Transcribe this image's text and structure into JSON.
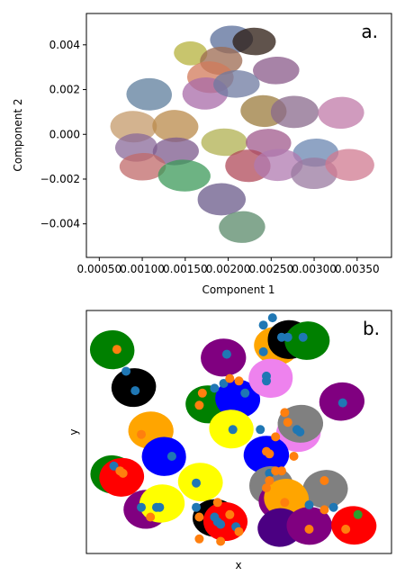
{
  "figure": {
    "background": "#ffffff"
  },
  "chart_data": [
    {
      "type": "scatter",
      "panel_label": "a.",
      "xlabel": "Component 1",
      "ylabel": "Component 2",
      "xlim": [
        0.00035,
        0.0039
      ],
      "ylim": [
        -0.0055,
        0.0054
      ],
      "xticks": [
        0.0005,
        0.001,
        0.0015,
        0.002,
        0.0025,
        0.003,
        0.0035
      ],
      "xtick_labels": [
        "0.00050",
        "0.00100",
        "0.00150",
        "0.00200",
        "0.00250",
        "0.00300",
        "0.00350"
      ],
      "yticks": [
        -0.004,
        -0.002,
        0.0,
        0.002,
        0.004
      ],
      "ytick_labels": [
        "−0.004",
        "−0.002",
        "0.000",
        "0.002",
        "0.004"
      ],
      "grid": false,
      "legend": "none",
      "clusters": [
        {
          "x": 0.00205,
          "y": 0.0042,
          "rx": 0.00028,
          "ry": 0.0007,
          "color": "#5a6e9a"
        },
        {
          "x": 0.0023,
          "y": 0.0041,
          "rx": 0.00028,
          "ry": 0.0007,
          "color": "#2b1a10"
        },
        {
          "x": 0.00155,
          "y": 0.0036,
          "rx": 0.00022,
          "ry": 0.0006,
          "color": "#b5b13c"
        },
        {
          "x": 0.0019,
          "y": 0.0033,
          "rx": 0.00028,
          "ry": 0.0007,
          "color": "#9c6a50"
        },
        {
          "x": 0.00255,
          "y": 0.0029,
          "rx": 0.0003,
          "ry": 0.0007,
          "color": "#8a5a8a"
        },
        {
          "x": 0.0018,
          "y": 0.0026,
          "rx": 0.0003,
          "ry": 0.0008,
          "color": "#d27a5a"
        },
        {
          "x": 0.0011,
          "y": 0.0018,
          "rx": 0.0003,
          "ry": 0.0008,
          "color": "#5d7e9c"
        },
        {
          "x": 0.00175,
          "y": 0.0018,
          "rx": 0.0003,
          "ry": 0.0008,
          "color": "#a86ba8"
        },
        {
          "x": 0.0021,
          "y": 0.0022,
          "rx": 0.0003,
          "ry": 0.0007,
          "color": "#6d7aa0"
        },
        {
          "x": 0.0024,
          "y": 0.001,
          "rx": 0.0003,
          "ry": 0.0008,
          "color": "#9b7b3c"
        },
        {
          "x": 0.00275,
          "y": 0.001,
          "rx": 0.00032,
          "ry": 0.0008,
          "color": "#8a6a8c"
        },
        {
          "x": 0.0033,
          "y": 0.001,
          "rx": 0.0003,
          "ry": 0.0008,
          "color": "#c07aa8"
        },
        {
          "x": 0.0009,
          "y": 0.0004,
          "rx": 0.0003,
          "ry": 0.0008,
          "color": "#c49a6a"
        },
        {
          "x": 0.0014,
          "y": 0.0004,
          "rx": 0.0003,
          "ry": 0.0008,
          "color": "#b98a4a"
        },
        {
          "x": 0.00095,
          "y": -0.0006,
          "rx": 0.00028,
          "ry": 0.0007,
          "color": "#8a6a9a"
        },
        {
          "x": 0.0014,
          "y": -0.0008,
          "rx": 0.0003,
          "ry": 0.0007,
          "color": "#7c5a8c"
        },
        {
          "x": 0.00195,
          "y": -0.0004,
          "rx": 0.0003,
          "ry": 0.0007,
          "color": "#b0b050"
        },
        {
          "x": 0.00245,
          "y": -0.0004,
          "rx": 0.0003,
          "ry": 0.0007,
          "color": "#a05a8c"
        },
        {
          "x": 0.003,
          "y": -0.0008,
          "rx": 0.0003,
          "ry": 0.0007,
          "color": "#6a86b0"
        },
        {
          "x": 0.001,
          "y": -0.0014,
          "rx": 0.0003,
          "ry": 0.0007,
          "color": "#c06a6a"
        },
        {
          "x": 0.0015,
          "y": -0.0018,
          "rx": 0.00034,
          "ry": 0.0008,
          "color": "#3c9a5a"
        },
        {
          "x": 0.00225,
          "y": -0.0014,
          "rx": 0.0003,
          "ry": 0.0008,
          "color": "#b04a5a"
        },
        {
          "x": 0.0026,
          "y": -0.0014,
          "rx": 0.00032,
          "ry": 0.0008,
          "color": "#b07ab0"
        },
        {
          "x": 0.003,
          "y": -0.0018,
          "rx": 0.0003,
          "ry": 0.0008,
          "color": "#9a7aa0"
        },
        {
          "x": 0.0034,
          "y": -0.0014,
          "rx": 0.00032,
          "ry": 0.0008,
          "color": "#d07a90"
        },
        {
          "x": 0.0019,
          "y": -0.0029,
          "rx": 0.00032,
          "ry": 0.0008,
          "color": "#6a5a8a"
        },
        {
          "x": 0.00215,
          "y": -0.0041,
          "rx": 0.0003,
          "ry": 0.0008,
          "color": "#5a8a6a"
        }
      ]
    },
    {
      "type": "scatter",
      "panel_label": "b.",
      "xlabel": "x",
      "ylabel": "y",
      "xlim": [
        0,
        100
      ],
      "ylim": [
        0,
        100
      ],
      "xticks": [],
      "yticks": [],
      "grid": false,
      "legend": "none",
      "regions": [
        {
          "x": 9,
          "y": 84,
          "color": "#008000"
        },
        {
          "x": 16,
          "y": 68,
          "color": "#000000"
        },
        {
          "x": 45,
          "y": 80,
          "color": "#800080"
        },
        {
          "x": 62,
          "y": 85,
          "color": "#ffa500"
        },
        {
          "x": 66,
          "y": 88,
          "color": "#000000"
        },
        {
          "x": 72,
          "y": 88,
          "color": "#008000"
        },
        {
          "x": 40,
          "y": 62,
          "color": "#008000"
        },
        {
          "x": 50,
          "y": 64,
          "color": "#0000ff"
        },
        {
          "x": 61,
          "y": 72,
          "color": "#ee82ee"
        },
        {
          "x": 84,
          "y": 62,
          "color": "#800080"
        },
        {
          "x": 21,
          "y": 50,
          "color": "#ffa500"
        },
        {
          "x": 47,
          "y": 51,
          "color": "#ffff00"
        },
        {
          "x": 69,
          "y": 50,
          "color": "#ee82ee"
        },
        {
          "x": 70,
          "y": 54,
          "color": "#808080"
        },
        {
          "x": 9,
          "y": 33,
          "color": "#008000"
        },
        {
          "x": 26,
          "y": 40,
          "color": "#0000ff"
        },
        {
          "x": 12,
          "y": 31,
          "color": "#ff0000"
        },
        {
          "x": 59,
          "y": 40,
          "color": "#0000ff"
        },
        {
          "x": 37,
          "y": 29,
          "color": "#ffff00"
        },
        {
          "x": 60,
          "y": 28,
          "color": "#808080"
        },
        {
          "x": 78,
          "y": 27,
          "color": "#808080"
        },
        {
          "x": 64,
          "y": 22,
          "color": "#800080"
        },
        {
          "x": 66,
          "y": 23,
          "color": "#ffa500"
        },
        {
          "x": 20,
          "y": 18,
          "color": "#800080"
        },
        {
          "x": 25,
          "y": 20,
          "color": "#ffff00"
        },
        {
          "x": 42,
          "y": 14,
          "color": "#000000"
        },
        {
          "x": 45,
          "y": 13,
          "color": "#ff0000"
        },
        {
          "x": 63,
          "y": 11,
          "color": "#4b0082"
        },
        {
          "x": 73,
          "y": 12,
          "color": "#800080"
        },
        {
          "x": 88,
          "y": 12,
          "color": "#ff0000"
        }
      ],
      "points": [
        {
          "x": 10,
          "y": 84,
          "color": "#ff7f0e"
        },
        {
          "x": 13,
          "y": 75,
          "color": "#1f77b4"
        },
        {
          "x": 16,
          "y": 67,
          "color": "#1f77b4"
        },
        {
          "x": 46,
          "y": 82,
          "color": "#1f77b4"
        },
        {
          "x": 58,
          "y": 94,
          "color": "#1f77b4"
        },
        {
          "x": 61,
          "y": 97,
          "color": "#1f77b4"
        },
        {
          "x": 64,
          "y": 89,
          "color": "#1f77b4"
        },
        {
          "x": 66,
          "y": 89,
          "color": "#1f77b4"
        },
        {
          "x": 71,
          "y": 89,
          "color": "#1f77b4"
        },
        {
          "x": 58,
          "y": 83,
          "color": "#1f77b4"
        },
        {
          "x": 38,
          "y": 66,
          "color": "#ff7f0e"
        },
        {
          "x": 42,
          "y": 68,
          "color": "#1f77b4"
        },
        {
          "x": 45,
          "y": 70,
          "color": "#1f77b4"
        },
        {
          "x": 47,
          "y": 72,
          "color": "#ff7f0e"
        },
        {
          "x": 50,
          "y": 71,
          "color": "#ff7f0e"
        },
        {
          "x": 52,
          "y": 66,
          "color": "#1f77b4"
        },
        {
          "x": 59,
          "y": 73,
          "color": "#1f77b4"
        },
        {
          "x": 59,
          "y": 71,
          "color": "#1f77b4"
        },
        {
          "x": 37,
          "y": 61,
          "color": "#ff7f0e"
        },
        {
          "x": 84,
          "y": 62,
          "color": "#1f77b4"
        },
        {
          "x": 18,
          "y": 49,
          "color": "#ff7f0e"
        },
        {
          "x": 48,
          "y": 51,
          "color": "#1f77b4"
        },
        {
          "x": 57,
          "y": 51,
          "color": "#1f77b4"
        },
        {
          "x": 65,
          "y": 58,
          "color": "#ff7f0e"
        },
        {
          "x": 66,
          "y": 54,
          "color": "#ff7f0e"
        },
        {
          "x": 69,
          "y": 51,
          "color": "#1f77b4"
        },
        {
          "x": 70,
          "y": 50,
          "color": "#1f77b4"
        },
        {
          "x": 62,
          "y": 48,
          "color": "#ff7f0e"
        },
        {
          "x": 68,
          "y": 40,
          "color": "#ff7f0e"
        },
        {
          "x": 59,
          "y": 42,
          "color": "#ff7f0e"
        },
        {
          "x": 60,
          "y": 41,
          "color": "#ff7f0e"
        },
        {
          "x": 28,
          "y": 40,
          "color": "#1f77b4"
        },
        {
          "x": 9,
          "y": 36,
          "color": "#1f77b4"
        },
        {
          "x": 11,
          "y": 34,
          "color": "#ff7f0e"
        },
        {
          "x": 12,
          "y": 33,
          "color": "#ff7f0e"
        },
        {
          "x": 60,
          "y": 33,
          "color": "#1f77b4"
        },
        {
          "x": 62,
          "y": 34,
          "color": "#ff7f0e"
        },
        {
          "x": 64,
          "y": 34,
          "color": "#ff7f0e"
        },
        {
          "x": 60,
          "y": 30,
          "color": "#ff7f0e"
        },
        {
          "x": 59,
          "y": 27,
          "color": "#ff7f0e"
        },
        {
          "x": 36,
          "y": 29,
          "color": "#1f77b4"
        },
        {
          "x": 78,
          "y": 30,
          "color": "#ff7f0e"
        },
        {
          "x": 43,
          "y": 21,
          "color": "#ff7f0e"
        },
        {
          "x": 65,
          "y": 21,
          "color": "#ff7f0e"
        },
        {
          "x": 73,
          "y": 20,
          "color": "#1f77b4"
        },
        {
          "x": 18,
          "y": 19,
          "color": "#1f77b4"
        },
        {
          "x": 21,
          "y": 15,
          "color": "#ff7f0e"
        },
        {
          "x": 23,
          "y": 19,
          "color": "#1f77b4"
        },
        {
          "x": 24,
          "y": 19,
          "color": "#1f77b4"
        },
        {
          "x": 36,
          "y": 19,
          "color": "#1f77b4"
        },
        {
          "x": 37,
          "y": 15,
          "color": "#ff7f0e"
        },
        {
          "x": 42,
          "y": 15,
          "color": "#1f77b4"
        },
        {
          "x": 43,
          "y": 13,
          "color": "#1f77b4"
        },
        {
          "x": 44,
          "y": 12,
          "color": "#1f77b4"
        },
        {
          "x": 47,
          "y": 16,
          "color": "#ff7f0e"
        },
        {
          "x": 49,
          "y": 11,
          "color": "#1f77b4"
        },
        {
          "x": 37,
          "y": 6,
          "color": "#ff7f0e"
        },
        {
          "x": 44,
          "y": 5,
          "color": "#ff7f0e"
        },
        {
          "x": 50,
          "y": 9,
          "color": "#ff7f0e"
        },
        {
          "x": 73,
          "y": 10,
          "color": "#ff7f0e"
        },
        {
          "x": 78,
          "y": 18,
          "color": "#ff7f0e"
        },
        {
          "x": 81,
          "y": 19,
          "color": "#1f77b4"
        },
        {
          "x": 85,
          "y": 10,
          "color": "#ff7f0e"
        },
        {
          "x": 89,
          "y": 16,
          "color": "#2ca02c"
        }
      ]
    }
  ]
}
